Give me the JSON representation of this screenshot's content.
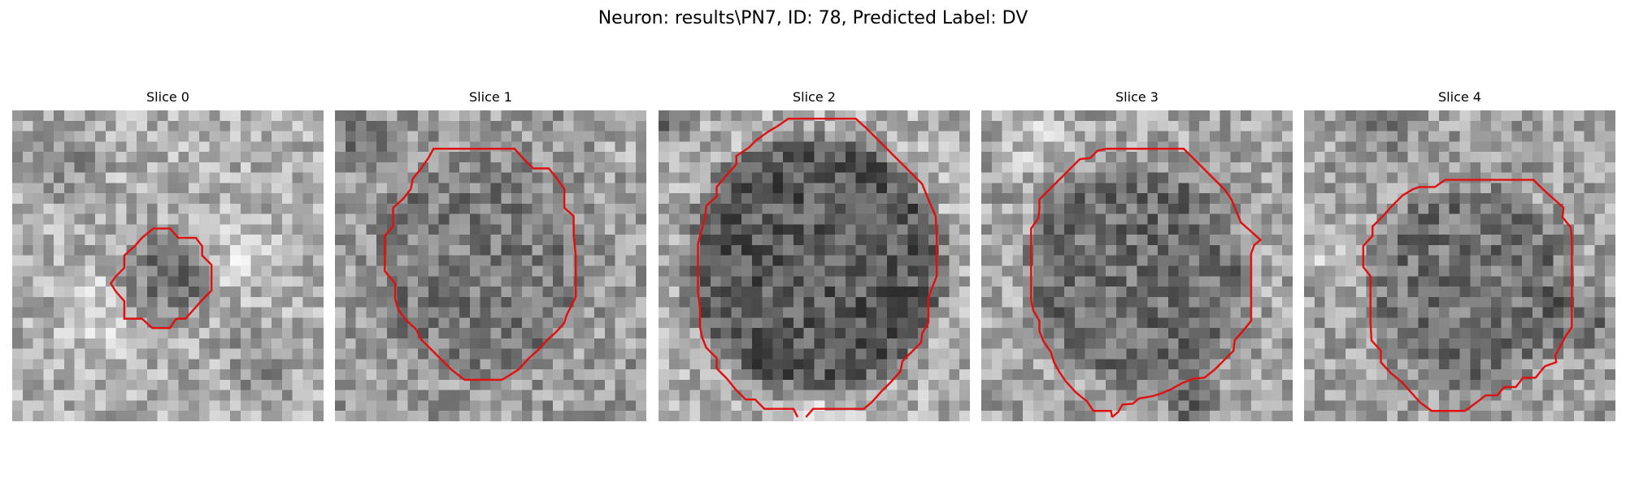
{
  "figure": {
    "title": "Neuron: results\\PN7, ID: 78, Predicted Label: DV",
    "contour_color": "#e01010"
  },
  "slices": [
    {
      "title": "Slice 0"
    },
    {
      "title": "Slice 1"
    },
    {
      "title": "Slice 2"
    },
    {
      "title": "Slice 3"
    },
    {
      "title": "Slice 4"
    }
  ]
}
